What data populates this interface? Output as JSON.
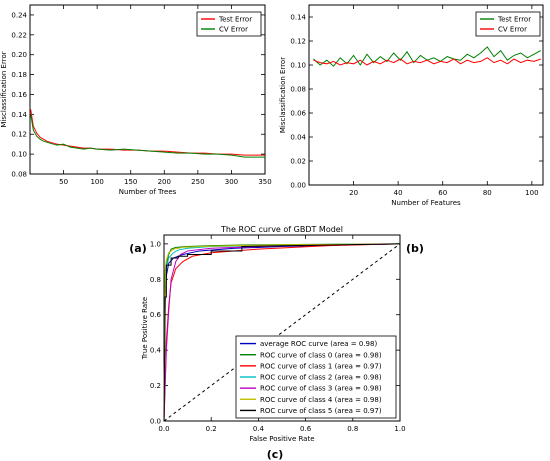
{
  "colors": {
    "red": "#ff0000",
    "green": "#008000",
    "blue": "#0000bf",
    "cyan": "#00bfbf",
    "magenta": "#bf00bf",
    "yellow": "#bfbf00",
    "black": "#000000"
  },
  "chart_data": [
    {
      "panel_label": "(a)",
      "type": "line",
      "xlabel": "Number of Trees",
      "ylabel": "Misclassification Error",
      "xlim": [
        0,
        350
      ],
      "ylim": [
        0.08,
        0.25
      ],
      "xticks": [
        50,
        100,
        150,
        200,
        250,
        300,
        350
      ],
      "yticks": [
        0.08,
        0.1,
        0.12,
        0.14,
        0.16,
        0.18,
        0.2,
        0.22,
        0.24
      ],
      "legend": "top-right",
      "series": [
        {
          "name": "Test Error",
          "color": "red",
          "x": [
            1,
            5,
            10,
            15,
            20,
            25,
            30,
            40,
            50,
            60,
            70,
            80,
            90,
            100,
            120,
            140,
            160,
            180,
            200,
            220,
            240,
            260,
            280,
            300,
            320,
            340,
            350
          ],
          "y": [
            0.145,
            0.128,
            0.121,
            0.117,
            0.115,
            0.113,
            0.112,
            0.11,
            0.109,
            0.108,
            0.107,
            0.106,
            0.106,
            0.105,
            0.105,
            0.104,
            0.104,
            0.103,
            0.103,
            0.102,
            0.101,
            0.101,
            0.1,
            0.1,
            0.099,
            0.099,
            0.099
          ]
        },
        {
          "name": "CV Error",
          "color": "green",
          "x": [
            1,
            5,
            10,
            15,
            20,
            25,
            30,
            40,
            50,
            60,
            70,
            80,
            90,
            100,
            120,
            140,
            160,
            180,
            200,
            220,
            240,
            260,
            280,
            300,
            320,
            340,
            350
          ],
          "y": [
            0.14,
            0.124,
            0.118,
            0.115,
            0.113,
            0.112,
            0.111,
            0.109,
            0.11,
            0.107,
            0.106,
            0.105,
            0.106,
            0.105,
            0.104,
            0.105,
            0.104,
            0.103,
            0.102,
            0.101,
            0.101,
            0.1,
            0.1,
            0.099,
            0.097,
            0.097,
            0.097
          ]
        }
      ]
    },
    {
      "panel_label": "(b)",
      "type": "line",
      "xlabel": "Number of Features",
      "ylabel": "Misclassification Error",
      "xlim": [
        0,
        105
      ],
      "ylim": [
        0.0,
        0.15
      ],
      "xticks": [
        20,
        40,
        60,
        80,
        100
      ],
      "yticks": [
        0.0,
        0.02,
        0.04,
        0.06,
        0.08,
        0.1,
        0.12,
        0.14
      ],
      "legend": "top-right",
      "series": [
        {
          "name": "Test Error",
          "color": "green",
          "x": [
            2,
            5,
            8,
            11,
            14,
            17,
            20,
            23,
            26,
            29,
            32,
            35,
            38,
            41,
            44,
            47,
            50,
            53,
            56,
            59,
            62,
            65,
            68,
            71,
            74,
            77,
            80,
            83,
            86,
            89,
            92,
            95,
            98,
            101,
            104
          ],
          "y": [
            0.105,
            0.1,
            0.104,
            0.099,
            0.106,
            0.101,
            0.108,
            0.1,
            0.109,
            0.102,
            0.107,
            0.103,
            0.11,
            0.104,
            0.111,
            0.102,
            0.108,
            0.104,
            0.106,
            0.103,
            0.107,
            0.105,
            0.104,
            0.109,
            0.106,
            0.11,
            0.115,
            0.107,
            0.112,
            0.104,
            0.108,
            0.11,
            0.106,
            0.109,
            0.112
          ]
        },
        {
          "name": "CV Error",
          "color": "red",
          "x": [
            2,
            5,
            8,
            11,
            14,
            17,
            20,
            23,
            26,
            29,
            32,
            35,
            38,
            41,
            44,
            47,
            50,
            53,
            56,
            59,
            62,
            65,
            68,
            71,
            74,
            77,
            80,
            83,
            86,
            89,
            92,
            95,
            98,
            101,
            104
          ],
          "y": [
            0.104,
            0.102,
            0.101,
            0.103,
            0.1,
            0.102,
            0.101,
            0.104,
            0.1,
            0.103,
            0.101,
            0.104,
            0.102,
            0.105,
            0.101,
            0.103,
            0.102,
            0.104,
            0.101,
            0.103,
            0.102,
            0.105,
            0.101,
            0.104,
            0.102,
            0.103,
            0.106,
            0.102,
            0.104,
            0.101,
            0.105,
            0.102,
            0.104,
            0.103,
            0.105
          ]
        }
      ]
    },
    {
      "panel_label": "(c)",
      "type": "line",
      "title": "The ROC curve of GBDT Model",
      "xlabel": "False Positive Rate",
      "ylabel": "True Positive Rate",
      "xlim": [
        0.0,
        1.0
      ],
      "ylim": [
        0.0,
        1.05
      ],
      "xticks": [
        0.0,
        0.2,
        0.4,
        0.6,
        0.8,
        1.0
      ],
      "yticks": [
        0.0,
        0.2,
        0.4,
        0.6,
        0.8,
        1.0
      ],
      "legend": "bottom-right",
      "series": [
        {
          "name": "average ROC curve (area = 0.98)",
          "color": "blue",
          "x": [
            0,
            0.005,
            0.01,
            0.02,
            0.04,
            0.08,
            0.15,
            0.3,
            0.5,
            0.8,
            1.0
          ],
          "y": [
            0,
            0.7,
            0.82,
            0.89,
            0.92,
            0.94,
            0.96,
            0.975,
            0.985,
            0.995,
            1.0
          ]
        },
        {
          "name": "ROC curve of class 0 (area = 0.98)",
          "color": "green",
          "x": [
            0,
            0.005,
            0.01,
            0.02,
            0.03,
            0.05,
            0.1,
            0.2,
            0.4,
            0.7,
            1.0
          ],
          "y": [
            0,
            0.82,
            0.88,
            0.94,
            0.97,
            0.98,
            0.985,
            0.99,
            0.995,
            0.998,
            1.0
          ]
        },
        {
          "name": "ROC curve of class 1 (area = 0.97)",
          "color": "red",
          "x": [
            0,
            0.01,
            0.02,
            0.03,
            0.05,
            0.08,
            0.12,
            0.2,
            0.4,
            0.7,
            1.0
          ],
          "y": [
            0,
            0.45,
            0.65,
            0.78,
            0.86,
            0.9,
            0.93,
            0.95,
            0.97,
            0.99,
            1.0
          ]
        },
        {
          "name": "ROC curve of class 2 (area = 0.98)",
          "color": "cyan",
          "x": [
            0,
            0.005,
            0.01,
            0.02,
            0.04,
            0.06,
            0.1,
            0.2,
            0.4,
            0.7,
            1.0
          ],
          "y": [
            0,
            0.78,
            0.86,
            0.92,
            0.95,
            0.965,
            0.975,
            0.985,
            0.99,
            0.997,
            1.0
          ]
        },
        {
          "name": "ROC curve of class 3 (area = 0.98)",
          "color": "magenta",
          "x": [
            0,
            0.01,
            0.02,
            0.03,
            0.05,
            0.07,
            0.1,
            0.2,
            0.4,
            0.7,
            1.0
          ],
          "y": [
            0,
            0.4,
            0.62,
            0.8,
            0.9,
            0.94,
            0.96,
            0.975,
            0.985,
            0.995,
            1.0
          ]
        },
        {
          "name": "ROC curve of class 4 (area = 0.98)",
          "color": "yellow",
          "x": [
            0,
            0.005,
            0.01,
            0.02,
            0.04,
            0.08,
            0.15,
            0.3,
            0.5,
            0.8,
            1.0
          ],
          "y": [
            0,
            0.85,
            0.91,
            0.95,
            0.97,
            0.98,
            0.985,
            0.99,
            0.995,
            0.998,
            1.0
          ]
        },
        {
          "name": "ROC curve of class 5 (area = 0.97)",
          "color": "black",
          "x": [
            0,
            0.005,
            0.01,
            0.01,
            0.03,
            0.03,
            0.06,
            0.06,
            0.1,
            0.1,
            0.2,
            0.2,
            0.33,
            0.33,
            1.0
          ],
          "y": [
            0,
            0.7,
            0.7,
            0.88,
            0.88,
            0.92,
            0.92,
            0.93,
            0.93,
            0.94,
            0.94,
            0.96,
            0.96,
            0.985,
            1.0
          ]
        },
        {
          "name": "chance",
          "color": "black",
          "style": "dashed",
          "x": [
            0,
            1.0
          ],
          "y": [
            0,
            1.0
          ]
        }
      ]
    }
  ]
}
